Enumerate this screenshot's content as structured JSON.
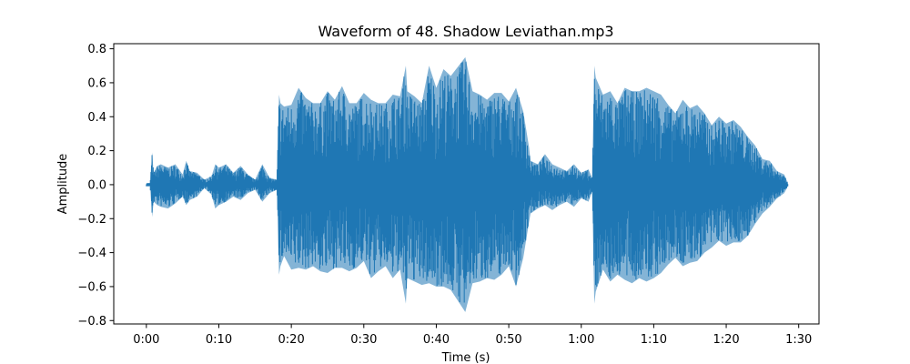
{
  "chart_data": {
    "type": "line",
    "title": "Waveform of 48. Shadow Leviathan.mp3",
    "xlabel": "Time (s)",
    "ylabel": "Amplitude",
    "xlim": [
      -4.5,
      92.8
    ],
    "ylim": [
      -0.82,
      0.83
    ],
    "x_ticks": [
      0,
      10,
      20,
      30,
      40,
      50,
      60,
      70,
      80,
      90
    ],
    "x_tick_labels": [
      "0:00",
      "0:10",
      "0:20",
      "0:30",
      "0:40",
      "0:50",
      "1:00",
      "1:10",
      "1:20",
      "1:30"
    ],
    "y_ticks": [
      -0.8,
      -0.6,
      -0.4,
      -0.2,
      0.0,
      0.2,
      0.4,
      0.6,
      0.8
    ],
    "y_tick_labels": [
      "−0.8",
      "−0.6",
      "−0.4",
      "−0.2",
      "0.0",
      "0.2",
      "0.4",
      "0.6",
      "0.8"
    ],
    "grid": false,
    "line_color": "#1f77b4",
    "series": [
      {
        "x": [
          0.0,
          0.5,
          0.8,
          1.0,
          1.5,
          2.0,
          3.0,
          4.0,
          5.0,
          5.5,
          6.0,
          7.0,
          8.0,
          9.0,
          9.5,
          10.0,
          11.0,
          12.0,
          13.0,
          14.0,
          15.0,
          16.0,
          17.0,
          18.0,
          18.3,
          18.5,
          19.0,
          20.0,
          21.0,
          22.0,
          23.0,
          24.0,
          25.0,
          26.0,
          27.0,
          28.0,
          29.0,
          30.0,
          31.0,
          32.0,
          33.0,
          34.0,
          35.0,
          35.8,
          36.0,
          37.0,
          38.0,
          39.0,
          40.0,
          41.0,
          42.0,
          44.0,
          45.0,
          46.0,
          47.0,
          48.0,
          49.0,
          50.0,
          51.0,
          52.0,
          52.8,
          53.0,
          54.0,
          55.0,
          56.0,
          57.0,
          58.0,
          59.0,
          60.0,
          61.0,
          61.5,
          61.8,
          62.0,
          63.0,
          64.0,
          65.0,
          66.0,
          67.0,
          68.0,
          69.0,
          70.0,
          71.0,
          72.0,
          73.0,
          74.0,
          75.0,
          76.0,
          77.0,
          78.0,
          79.0,
          80.0,
          81.0,
          82.0,
          83.0,
          84.0,
          85.0,
          86.0,
          87.0,
          88.0,
          88.5
        ],
        "upper": [
          0.01,
          0.01,
          0.19,
          0.07,
          0.11,
          0.12,
          0.1,
          0.12,
          0.06,
          0.14,
          0.08,
          0.07,
          0.03,
          0.05,
          0.12,
          0.1,
          0.12,
          0.07,
          0.11,
          0.06,
          0.03,
          0.12,
          0.04,
          0.03,
          0.53,
          0.48,
          0.46,
          0.47,
          0.57,
          0.51,
          0.48,
          0.48,
          0.55,
          0.5,
          0.58,
          0.48,
          0.48,
          0.54,
          0.5,
          0.48,
          0.48,
          0.53,
          0.52,
          0.7,
          0.55,
          0.52,
          0.48,
          0.7,
          0.57,
          0.68,
          0.64,
          0.75,
          0.55,
          0.53,
          0.5,
          0.54,
          0.54,
          0.49,
          0.57,
          0.43,
          0.22,
          0.14,
          0.12,
          0.18,
          0.12,
          0.1,
          0.08,
          0.12,
          0.07,
          0.09,
          0.04,
          0.7,
          0.63,
          0.53,
          0.55,
          0.48,
          0.57,
          0.55,
          0.55,
          0.57,
          0.55,
          0.53,
          0.47,
          0.42,
          0.5,
          0.45,
          0.47,
          0.42,
          0.35,
          0.4,
          0.36,
          0.38,
          0.34,
          0.28,
          0.23,
          0.15,
          0.14,
          0.08,
          0.06,
          0.01
        ],
        "lower": [
          -0.01,
          -0.01,
          -0.19,
          -0.1,
          -0.12,
          -0.13,
          -0.14,
          -0.11,
          -0.07,
          -0.12,
          -0.09,
          -0.07,
          -0.02,
          -0.06,
          -0.14,
          -0.12,
          -0.1,
          -0.07,
          -0.09,
          -0.05,
          -0.03,
          -0.1,
          -0.05,
          -0.03,
          -0.53,
          -0.48,
          -0.42,
          -0.5,
          -0.49,
          -0.5,
          -0.48,
          -0.51,
          -0.52,
          -0.49,
          -0.49,
          -0.51,
          -0.49,
          -0.45,
          -0.55,
          -0.51,
          -0.48,
          -0.55,
          -0.5,
          -0.7,
          -0.55,
          -0.57,
          -0.59,
          -0.58,
          -0.6,
          -0.6,
          -0.62,
          -0.75,
          -0.58,
          -0.57,
          -0.55,
          -0.56,
          -0.53,
          -0.48,
          -0.6,
          -0.43,
          -0.22,
          -0.17,
          -0.14,
          -0.12,
          -0.15,
          -0.12,
          -0.1,
          -0.13,
          -0.08,
          -0.1,
          -0.04,
          -0.7,
          -0.63,
          -0.5,
          -0.57,
          -0.53,
          -0.56,
          -0.58,
          -0.55,
          -0.57,
          -0.55,
          -0.52,
          -0.47,
          -0.43,
          -0.48,
          -0.46,
          -0.45,
          -0.4,
          -0.37,
          -0.33,
          -0.36,
          -0.34,
          -0.34,
          -0.3,
          -0.23,
          -0.17,
          -0.13,
          -0.08,
          -0.05,
          -0.01
        ]
      }
    ]
  }
}
